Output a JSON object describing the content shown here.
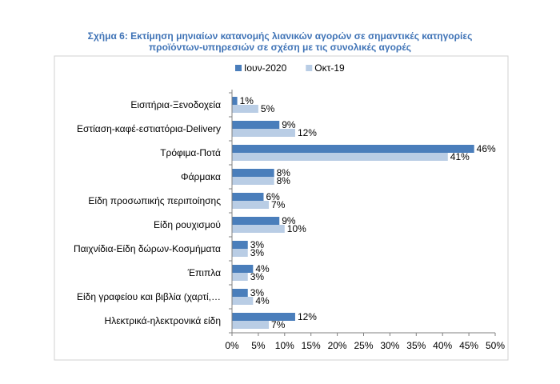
{
  "chart_data": {
    "type": "bar",
    "orientation": "horizontal",
    "title_line1": "Σχήμα 6: Εκτίμηση μηνιαίων κατανομής λιανικών αγορών σε σημαντικές κατηγορίες",
    "title_line2": "προϊόντων-υπηρεσιών σε σχέση με τις συνολικές αγορές",
    "categories": [
      "Εισιτήρια-Ξενοδοχεία",
      "Εστίαση-καφέ-εστιατόρια-Delivery",
      "Τρόφιμα-Ποτά",
      "Φάρμακα",
      "Είδη προσωπικής περιποίησης",
      "Είδη ρουχισμού",
      "Παιχνίδια-Είδη δώρων-Κοσμήματα",
      "Έπιπλα",
      "Είδη γραφείου και βιβλία (χαρτί,…",
      "Ηλεκτρικά-ηλεκτρονικά είδη"
    ],
    "series": [
      {
        "name": "Ιουν-2020",
        "color": "#4a7ebb",
        "values": [
          1,
          9,
          46,
          8,
          6,
          9,
          3,
          4,
          3,
          12
        ],
        "labels": [
          "1%",
          "9%",
          "46%",
          "8%",
          "6%",
          "9%",
          "3%",
          "4%",
          "3%",
          "12%"
        ]
      },
      {
        "name": "Οκτ-19",
        "color": "#b9cde5",
        "values": [
          5,
          12,
          41,
          8,
          7,
          10,
          3,
          3,
          4,
          7
        ],
        "labels": [
          "5%",
          "12%",
          "41%",
          "8%",
          "7%",
          "10%",
          "3%",
          "3%",
          "4%",
          "7%"
        ]
      }
    ],
    "xlim": [
      0,
      50
    ],
    "xticks": [
      "0%",
      "5%",
      "10%",
      "15%",
      "20%",
      "25%",
      "30%",
      "35%",
      "40%",
      "45%",
      "50%"
    ],
    "legend_position": "top-left",
    "grid": false
  }
}
